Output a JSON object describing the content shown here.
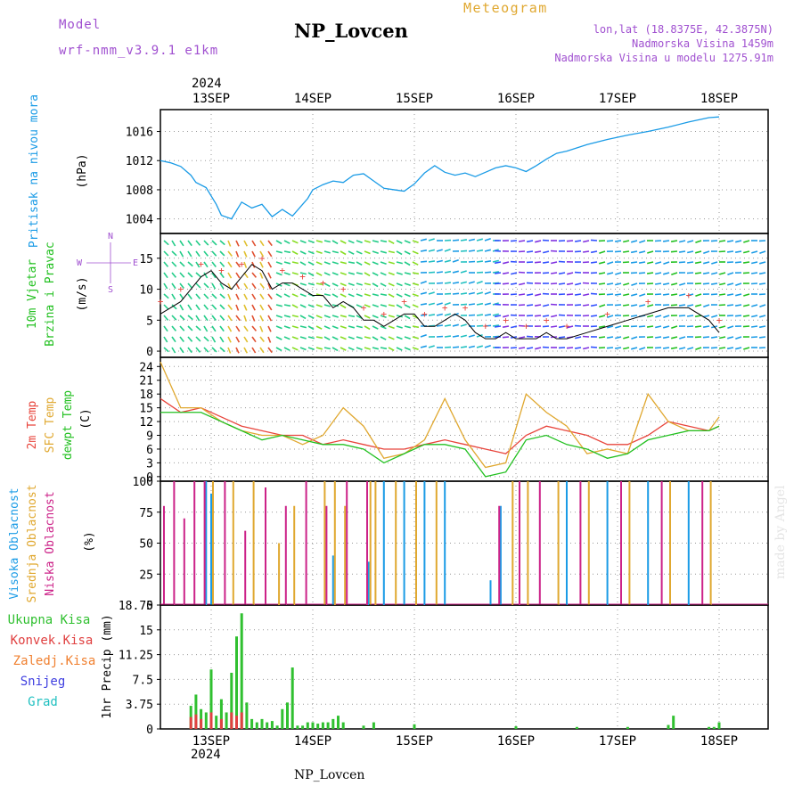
{
  "header": {
    "model_label": "Model",
    "model_name": "wrf-nmm_v3.9.1 e1km",
    "station": "NP_Lovcen",
    "meteogram": "Meteogram",
    "lonlat": "lon,lat (18.8375E, 42.3875N)",
    "elev": "Nadmorska Visina 1459m",
    "elev_model": "Nadmorska Visina u modelu 1275.91m",
    "footer_station": "NP_Lovcen",
    "watermark": "made by Angel",
    "year": "2024"
  },
  "colors": {
    "pressure": "#1a9be6",
    "t2m": "#e8453c",
    "sfc": "#e0a830",
    "dewpt": "#22c020",
    "cloud_high": "#1a9be6",
    "cloud_mid": "#e0a830",
    "cloud_low": "#cc2288",
    "precip_total": "#30c030",
    "precip_conv": "#e04040",
    "precip_frz": "#f08030",
    "snow": "#4040e0",
    "hail": "#20c0c0",
    "title_purple": "#a050d0",
    "orange": "#e0a830"
  },
  "chart_data": [
    {
      "type": "line",
      "name_label": "Pritisak na nivou mora",
      "unit": "(hPa)",
      "x_ticks": [
        "13SEP",
        "14SEP",
        "15SEP",
        "16SEP",
        "17SEP",
        "18SEP"
      ],
      "ylim": [
        1002,
        1019
      ],
      "y_ticks": [
        1004,
        1008,
        1012,
        1016
      ],
      "grid": true,
      "series": [
        {
          "name": "",
          "x": [
            0,
            0.1,
            0.2,
            0.3,
            0.35,
            0.45,
            0.55,
            0.6,
            0.7,
            0.8,
            0.9,
            1.0,
            1.1,
            1.2,
            1.3,
            1.4,
            1.45,
            1.5,
            1.6,
            1.7,
            1.8,
            1.9,
            2.0,
            2.1,
            2.2,
            2.3,
            2.4,
            2.5,
            2.6,
            2.7,
            2.8,
            2.9,
            3.0,
            3.1,
            3.2,
            3.3,
            3.4,
            3.5,
            3.6,
            3.7,
            3.8,
            3.9,
            4.0,
            4.2,
            4.4,
            4.6,
            4.8,
            5.0,
            5.2,
            5.4,
            5.5
          ],
          "values": [
            1012.0,
            1011.7,
            1011.2,
            1010.0,
            1009.0,
            1008.3,
            1006.0,
            1004.5,
            1004.0,
            1006.3,
            1005.5,
            1006.0,
            1004.3,
            1005.3,
            1004.4,
            1006.0,
            1006.8,
            1008.0,
            1008.7,
            1009.2,
            1009.0,
            1010.0,
            1010.2,
            1009.2,
            1008.2,
            1008.0,
            1007.8,
            1008.8,
            1010.3,
            1011.3,
            1010.4,
            1010.0,
            1010.3,
            1009.8,
            1010.4,
            1011.0,
            1011.3,
            1011.0,
            1010.5,
            1011.3,
            1012.2,
            1013.0,
            1013.3,
            1014.2,
            1014.9,
            1015.5,
            1016.0,
            1016.6,
            1017.3,
            1017.9,
            1018.0
          ]
        }
      ]
    },
    {
      "type": "line",
      "name_label": [
        "10m Vjetar",
        "Brzina i Pravac"
      ],
      "unit": "(m/s)",
      "compass": {
        "n": "N",
        "w": "W",
        "e": "E",
        "s": "S"
      },
      "ylim": [
        -1,
        19
      ],
      "y_ticks": [
        0,
        5,
        10,
        15
      ],
      "grid": true,
      "series": [
        {
          "name": "",
          "x": [
            0,
            0.1,
            0.2,
            0.3,
            0.4,
            0.5,
            0.6,
            0.7,
            0.8,
            0.9,
            1.0,
            1.1,
            1.2,
            1.3,
            1.4,
            1.5,
            1.6,
            1.7,
            1.8,
            1.9,
            2.0,
            2.1,
            2.2,
            2.3,
            2.4,
            2.5,
            2.6,
            2.7,
            2.8,
            2.9,
            3.0,
            3.1,
            3.2,
            3.3,
            3.4,
            3.5,
            3.6,
            3.7,
            3.8,
            3.9,
            4.0,
            4.2,
            4.4,
            4.6,
            4.8,
            5.0,
            5.2,
            5.4,
            5.5
          ],
          "values": [
            6,
            7,
            8,
            10,
            12,
            13,
            11,
            10,
            12,
            14,
            13,
            10,
            11,
            11,
            10,
            9,
            9,
            7,
            8,
            7,
            5,
            5,
            4,
            5,
            6,
            6,
            4,
            4,
            5,
            6,
            5,
            3,
            2,
            2,
            3,
            2,
            2,
            2,
            3,
            2,
            2,
            3,
            4,
            5,
            6,
            7,
            7,
            5,
            3
          ]
        }
      ]
    },
    {
      "type": "line",
      "name_label": [
        "2m Temp",
        "SFC Temp",
        "dewpt Temp"
      ],
      "unit": "(C)",
      "ylim": [
        -1,
        26
      ],
      "y_ticks": [
        0,
        3,
        6,
        9,
        12,
        15,
        18,
        21,
        24
      ],
      "grid": true,
      "series": [
        {
          "name": "2m Temp",
          "x": [
            0,
            0.2,
            0.4,
            0.6,
            0.8,
            1.0,
            1.2,
            1.4,
            1.6,
            1.8,
            2.0,
            2.2,
            2.4,
            2.6,
            2.8,
            3.0,
            3.2,
            3.4,
            3.6,
            3.8,
            4.0,
            4.2,
            4.4,
            4.6,
            4.8,
            5.0,
            5.2,
            5.4,
            5.5
          ],
          "values": [
            17,
            14,
            15,
            13,
            11,
            10,
            9,
            9,
            7,
            8,
            7,
            6,
            6,
            7,
            8,
            7,
            6,
            5,
            9,
            11,
            10,
            9,
            7,
            7,
            9,
            12,
            11,
            10,
            11
          ]
        },
        {
          "name": "SFC Temp",
          "x": [
            0,
            0.2,
            0.4,
            0.6,
            0.8,
            1.0,
            1.2,
            1.4,
            1.6,
            1.8,
            2.0,
            2.2,
            2.4,
            2.6,
            2.8,
            3.0,
            3.2,
            3.4,
            3.6,
            3.8,
            4.0,
            4.2,
            4.4,
            4.6,
            4.8,
            5.0,
            5.2,
            5.4,
            5.5
          ],
          "values": [
            25,
            15,
            15,
            12,
            10,
            9,
            9,
            7,
            9,
            15,
            11,
            4,
            5,
            8,
            17,
            8,
            2,
            3,
            18,
            14,
            11,
            5,
            6,
            5,
            18,
            12,
            10,
            10,
            13
          ]
        },
        {
          "name": "dewpt Temp",
          "x": [
            0,
            0.2,
            0.4,
            0.6,
            0.8,
            1.0,
            1.2,
            1.4,
            1.6,
            1.8,
            2.0,
            2.2,
            2.4,
            2.6,
            2.8,
            3.0,
            3.2,
            3.4,
            3.6,
            3.8,
            4.0,
            4.2,
            4.4,
            4.6,
            4.8,
            5.0,
            5.2,
            5.4,
            5.5
          ],
          "values": [
            14,
            14,
            14,
            12,
            10,
            8,
            9,
            8,
            7,
            7,
            6,
            3,
            5,
            7,
            7,
            6,
            0,
            1,
            8,
            9,
            7,
            6,
            4,
            5,
            8,
            9,
            10,
            10,
            11
          ]
        }
      ]
    },
    {
      "type": "bar",
      "name_label": [
        "Visoka Oblacnost",
        "Srednja Oblacnost",
        "Niska Oblacnost"
      ],
      "unit": "(%)",
      "ylim": [
        0,
        100
      ],
      "y_ticks": [
        0,
        25,
        50,
        75,
        100
      ],
      "grid": true,
      "series": [
        {
          "name": "Visoka Oblacnost",
          "x": [
            0.45,
            0.5,
            1.7,
            2.05,
            2.2,
            2.4,
            2.6,
            2.8,
            3.25,
            3.35,
            4.0,
            4.4,
            4.8,
            5.2
          ],
          "values": [
            100,
            90,
            40,
            35,
            100,
            100,
            100,
            100,
            20,
            80,
            100,
            100,
            100,
            100
          ]
        },
        {
          "name": "Srednja Oblacnost",
          "x": [
            0.5,
            0.7,
            0.9,
            1.15,
            1.3,
            1.6,
            1.7,
            1.8,
            2.05,
            2.1,
            2.3,
            2.5,
            2.7,
            3.45,
            3.6,
            3.9,
            4.2,
            4.6,
            5.0,
            5.4
          ],
          "values": [
            100,
            100,
            100,
            50,
            80,
            100,
            100,
            80,
            100,
            100,
            100,
            100,
            100,
            100,
            100,
            100,
            100,
            100,
            100,
            100
          ]
        },
        {
          "name": "Niska Oblacnost",
          "x": [
            0.0,
            0.1,
            0.2,
            0.3,
            0.4,
            0.6,
            0.8,
            1.0,
            1.2,
            1.4,
            1.6,
            1.8,
            2.0,
            3.3,
            3.5,
            3.7,
            4.1,
            4.5,
            4.9,
            5.3
          ],
          "values": [
            80,
            100,
            70,
            100,
            100,
            100,
            60,
            95,
            80,
            100,
            80,
            100,
            100,
            80,
            100,
            100,
            100,
            100,
            100,
            100
          ]
        }
      ]
    },
    {
      "type": "bar",
      "name_label": [
        "Ukupna Kisa",
        "Konvek.Kisa",
        "Zaledj.Kisa",
        "Snijeg",
        "Grad"
      ],
      "unit": "1hr Precip (mm)",
      "ylim": [
        0,
        18.75
      ],
      "y_ticks": [
        "0",
        "3.75",
        "7.5",
        "11.25",
        "15",
        "18.75"
      ],
      "grid": true,
      "x_ticks": [
        "13SEP",
        "14SEP",
        "15SEP",
        "16SEP",
        "17SEP",
        "18SEP"
      ],
      "series": [
        {
          "name": "Ukupna Kisa",
          "x": [
            0.3,
            0.35,
            0.4,
            0.45,
            0.5,
            0.55,
            0.6,
            0.65,
            0.7,
            0.75,
            0.8,
            0.85,
            0.9,
            0.95,
            1.0,
            1.05,
            1.1,
            1.15,
            1.2,
            1.25,
            1.3,
            1.35,
            1.4,
            1.45,
            1.5,
            1.55,
            1.6,
            1.65,
            1.7,
            1.75,
            1.8,
            2.0,
            2.1,
            2.5,
            3.5,
            4.1,
            4.6,
            5.0,
            5.05,
            5.4,
            5.45,
            5.5
          ],
          "values": [
            3.5,
            5.2,
            3.0,
            2.5,
            9.0,
            2.0,
            4.5,
            2.5,
            8.5,
            14.0,
            17.5,
            4.0,
            1.5,
            1.0,
            1.5,
            1.0,
            1.2,
            0.5,
            3.0,
            4.0,
            9.3,
            0.5,
            0.5,
            1.0,
            1.0,
            0.8,
            1.0,
            1.0,
            1.5,
            2.0,
            1.0,
            0.5,
            1.0,
            0.7,
            0.4,
            0.3,
            0.3,
            0.6,
            2.0,
            0.3,
            0.3,
            1.0
          ]
        },
        {
          "name": "Konvek.Kisa",
          "x": [
            0.3,
            0.35,
            0.4,
            0.5,
            0.6,
            0.7,
            0.75,
            0.8
          ],
          "values": [
            1.8,
            2.2,
            1.5,
            2.5,
            1.5,
            2.5,
            2.0,
            2.5
          ]
        }
      ]
    }
  ]
}
